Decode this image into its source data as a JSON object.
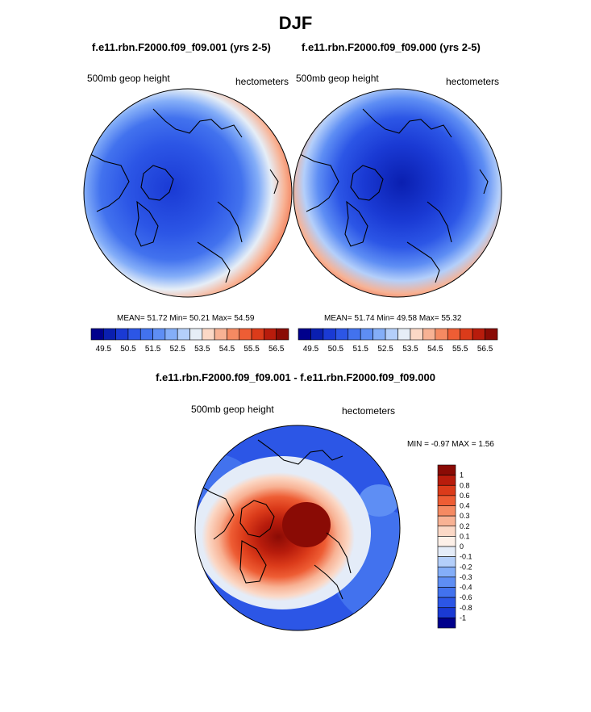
{
  "figure": {
    "title": "DJF",
    "left_panel": {
      "title": "f.e11.rbn.F2000.f09_f09.001 (yrs 2-5)",
      "left_label": "500mb geop height",
      "right_label": "hectometers",
      "stats": "MEAN=  51.72  Min=  50.21  Max=  54.59"
    },
    "right_panel": {
      "title": "f.e11.rbn.F2000.f09_f09.000 (yrs 2-5)",
      "left_label": "500mb geop height",
      "right_label": "hectometers",
      "stats": "MEAN=  51.74  Min=  49.58  Max=  55.32"
    },
    "diff_panel": {
      "title": "f.e11.rbn.F2000.f09_f09.001 - f.e11.rbn.F2000.f09_f09.000",
      "left_label": "500mb geop height",
      "right_label": "hectometers",
      "stats": "MIN =  -0.97 MAX =   1.56"
    }
  },
  "chart_data": [
    {
      "type": "heatmap",
      "projection": "north-polar-stereographic",
      "title": "f.e11.rbn.F2000.f09_f09.001 (yrs 2-5)",
      "variable": "500mb geop height",
      "units": "hectometers",
      "mean": 51.72,
      "min": 50.21,
      "max": 54.59,
      "colorbar_levels": [
        49.5,
        50,
        50.5,
        51,
        51.5,
        52,
        52.5,
        53,
        53.5,
        54,
        54.5,
        55,
        55.5,
        56,
        56.5
      ],
      "colorbar_tick_labels": [
        "49.5",
        "50.5",
        "51.5",
        "52.5",
        "53.5",
        "54.5",
        "55.5",
        "56.5"
      ],
      "colorbar_colors": [
        "#00008c",
        "#0a1fb0",
        "#1a3ad4",
        "#2c56e6",
        "#4272ee",
        "#5e8ef4",
        "#84aef8",
        "#b4cffa",
        "#e6eef7",
        "#fbd8c6",
        "#f8b294",
        "#f58a62",
        "#ee5d34",
        "#db3b1a",
        "#b81c0c",
        "#8a0b05"
      ],
      "colorbar_orientation": "horizontal"
    },
    {
      "type": "heatmap",
      "projection": "north-polar-stereographic",
      "title": "f.e11.rbn.F2000.f09_f09.000 (yrs 2-5)",
      "variable": "500mb geop height",
      "units": "hectometers",
      "mean": 51.74,
      "min": 49.58,
      "max": 55.32,
      "colorbar_levels": [
        49.5,
        50,
        50.5,
        51,
        51.5,
        52,
        52.5,
        53,
        53.5,
        54,
        54.5,
        55,
        55.5,
        56,
        56.5
      ],
      "colorbar_tick_labels": [
        "49.5",
        "50.5",
        "51.5",
        "52.5",
        "53.5",
        "54.5",
        "55.5",
        "56.5"
      ],
      "colorbar_colors": [
        "#00008c",
        "#0a1fb0",
        "#1a3ad4",
        "#2c56e6",
        "#4272ee",
        "#5e8ef4",
        "#84aef8",
        "#b4cffa",
        "#e6eef7",
        "#fbd8c6",
        "#f8b294",
        "#f58a62",
        "#ee5d34",
        "#db3b1a",
        "#b81c0c",
        "#8a0b05"
      ],
      "colorbar_orientation": "horizontal"
    },
    {
      "type": "heatmap",
      "projection": "north-polar-stereographic",
      "title": "f.e11.rbn.F2000.f09_f09.001 - f.e11.rbn.F2000.f09_f09.000",
      "variable": "500mb geop height",
      "units": "hectometers",
      "min": -0.97,
      "max": 1.56,
      "colorbar_tick_labels": [
        "1",
        "0.8",
        "0.6",
        "0.4",
        "0.3",
        "0.2",
        "0.1",
        "0",
        "-0.1",
        "-0.2",
        "-0.3",
        "-0.4",
        "-0.6",
        "-0.8",
        "-1"
      ],
      "colorbar_colors": [
        "#8a0b05",
        "#b81c0c",
        "#db3b1a",
        "#ee5d34",
        "#f58a62",
        "#f8b294",
        "#fbd8c6",
        "#fdf0e8",
        "#e4ecf8",
        "#b4cffa",
        "#84aef8",
        "#5e8ef4",
        "#4272ee",
        "#2c56e6",
        "#1a3ad4",
        "#00008c"
      ],
      "colorbar_orientation": "vertical"
    }
  ]
}
